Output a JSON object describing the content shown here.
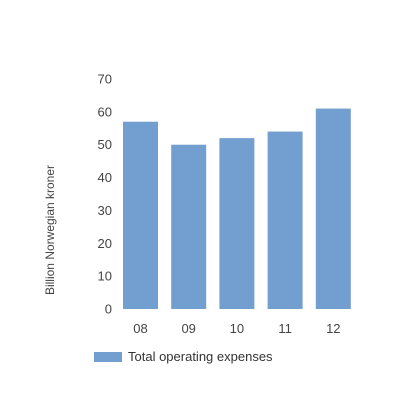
{
  "chart_data": {
    "type": "bar",
    "categories": [
      "08",
      "09",
      "10",
      "11",
      "12"
    ],
    "series": [
      {
        "name": "Total operating expenses",
        "values": [
          57,
          50,
          52,
          54,
          61
        ],
        "color": "#729fcf"
      }
    ],
    "ylabel": "Billion Norwegian kroner",
    "xlabel": "",
    "ylim": [
      0,
      70
    ],
    "yticks": [
      0,
      10,
      20,
      30,
      40,
      50,
      60,
      70
    ],
    "grid": false,
    "legend": "bottom-left"
  }
}
